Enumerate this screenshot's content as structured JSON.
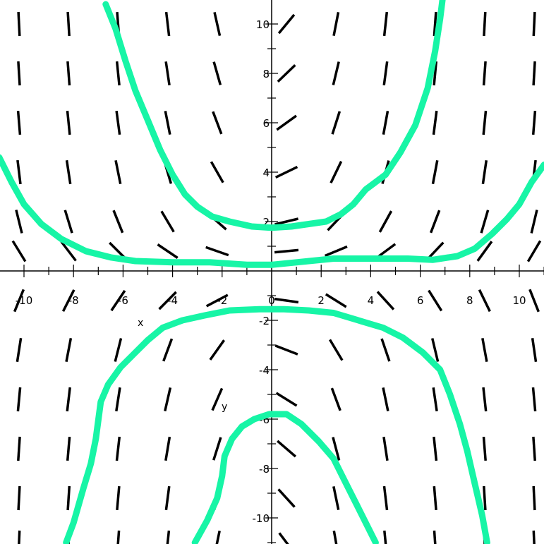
{
  "chart_data": {
    "type": "direction-field",
    "xlabel": "x",
    "ylabel": "y",
    "xlim": [
      -11,
      11
    ],
    "ylim": [
      -11,
      11
    ],
    "x_ticks": [
      -10,
      -8,
      -6,
      -4,
      -2,
      0,
      2,
      4,
      6,
      8,
      10
    ],
    "y_ticks": [
      -10,
      -8,
      -6,
      -4,
      -2,
      0,
      2,
      4,
      6,
      8,
      10
    ],
    "x_tick_labels": [
      "-10",
      "-8",
      "-6",
      "-4",
      "-2",
      "0",
      "2",
      "4",
      "6",
      "8",
      "10"
    ],
    "y_tick_labels": [
      "-10",
      "-8",
      "-6",
      "-4",
      "-2",
      "0",
      "2",
      "4",
      "6",
      "8",
      "10"
    ],
    "field_grid_x": [
      -10.2,
      -8.2,
      -6.2,
      -4.2,
      -2.2,
      0.6,
      2.6,
      4.6,
      6.6,
      8.6,
      10.6
    ],
    "field_grid_y": [
      10,
      8,
      6,
      4,
      2,
      0.8,
      -1.2,
      -3.2,
      -5.2,
      -7.2,
      -9.2,
      -11
    ],
    "segment_color": "#000000",
    "curve_color": "#17f5a6",
    "series": [
      {
        "points": [
          [
            -6.7,
            10.8
          ],
          [
            -6.3,
            9.8
          ],
          [
            -5.9,
            8.5
          ],
          [
            -5.5,
            7.3
          ],
          [
            -5.0,
            6.1
          ],
          [
            -4.5,
            4.9
          ],
          [
            -4.0,
            3.9
          ],
          [
            -3.5,
            3.1
          ],
          [
            -3.0,
            2.6
          ],
          [
            -2.4,
            2.2
          ],
          [
            -1.7,
            2.0
          ],
          [
            -0.8,
            1.8
          ],
          [
            0,
            1.75
          ],
          [
            0.8,
            1.8
          ],
          [
            1.5,
            1.9
          ],
          [
            2.2,
            2.0
          ],
          [
            2.8,
            2.3
          ],
          [
            3.3,
            2.7
          ],
          [
            3.8,
            3.3
          ],
          [
            4.6,
            3.9
          ],
          [
            5.2,
            4.8
          ],
          [
            5.8,
            5.9
          ],
          [
            6.3,
            7.4
          ],
          [
            6.6,
            8.9
          ],
          [
            6.8,
            10.2
          ],
          [
            6.9,
            11
          ]
        ]
      },
      {
        "points": [
          [
            -11,
            4.6
          ],
          [
            -10.5,
            3.6
          ],
          [
            -10.0,
            2.7
          ],
          [
            -9.3,
            1.9
          ],
          [
            -8.5,
            1.3
          ],
          [
            -7.5,
            0.8
          ],
          [
            -6.5,
            0.55
          ],
          [
            -5.5,
            0.4
          ],
          [
            -4.0,
            0.35
          ],
          [
            -2.5,
            0.35
          ],
          [
            -1.0,
            0.25
          ],
          [
            0,
            0.25
          ],
          [
            1.0,
            0.35
          ],
          [
            2.5,
            0.5
          ],
          [
            4.0,
            0.5
          ],
          [
            5.5,
            0.5
          ],
          [
            6.5,
            0.45
          ],
          [
            7.5,
            0.6
          ],
          [
            8.2,
            0.9
          ],
          [
            8.9,
            1.5
          ],
          [
            9.5,
            2.1
          ],
          [
            10.0,
            2.7
          ],
          [
            10.5,
            3.6
          ],
          [
            11,
            4.3
          ]
        ]
      },
      {
        "points": [
          [
            -8.3,
            -11
          ],
          [
            -8.0,
            -10.2
          ],
          [
            -7.6,
            -8.8
          ],
          [
            -7.3,
            -7.8
          ],
          [
            -7.1,
            -6.8
          ],
          [
            -6.9,
            -5.3
          ],
          [
            -6.6,
            -4.6
          ],
          [
            -6.1,
            -3.9
          ],
          [
            -5.6,
            -3.4
          ],
          [
            -5.0,
            -2.8
          ],
          [
            -4.4,
            -2.3
          ],
          [
            -3.6,
            -2.0
          ],
          [
            -2.7,
            -1.8
          ],
          [
            -1.7,
            -1.6
          ],
          [
            -0.5,
            -1.55
          ],
          [
            0.5,
            -1.55
          ],
          [
            1.5,
            -1.6
          ],
          [
            2.5,
            -1.7
          ],
          [
            3.5,
            -2.0
          ],
          [
            4.5,
            -2.3
          ],
          [
            5.3,
            -2.7
          ],
          [
            6.1,
            -3.3
          ],
          [
            6.8,
            -4.0
          ],
          [
            7.2,
            -5.0
          ],
          [
            7.6,
            -6.2
          ],
          [
            7.9,
            -7.3
          ],
          [
            8.2,
            -8.6
          ],
          [
            8.5,
            -9.9
          ],
          [
            8.7,
            -11
          ]
        ]
      },
      {
        "points": [
          [
            -3.1,
            -11
          ],
          [
            -2.6,
            -10.1
          ],
          [
            -2.2,
            -9.2
          ],
          [
            -2.0,
            -8.3
          ],
          [
            -1.9,
            -7.5
          ],
          [
            -1.6,
            -6.8
          ],
          [
            -1.2,
            -6.3
          ],
          [
            -0.7,
            -6.0
          ],
          [
            -0.1,
            -5.8
          ],
          [
            0.6,
            -5.8
          ],
          [
            1.2,
            -6.2
          ],
          [
            1.9,
            -6.9
          ],
          [
            2.5,
            -7.6
          ],
          [
            3.0,
            -8.6
          ],
          [
            3.5,
            -9.6
          ],
          [
            3.9,
            -10.4
          ],
          [
            4.2,
            -11
          ]
        ]
      }
    ]
  }
}
